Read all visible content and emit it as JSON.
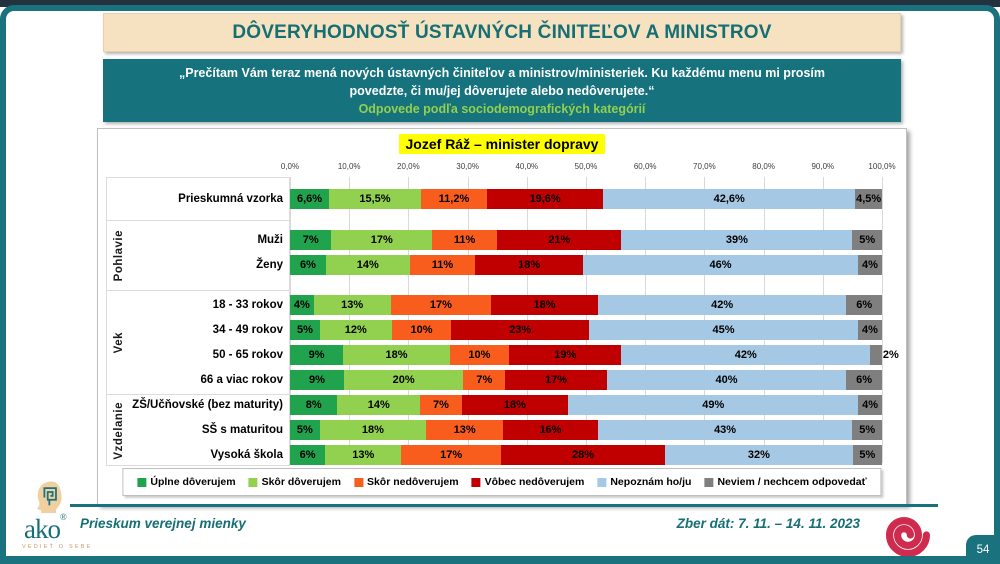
{
  "slide": {
    "title": "DÔVERYHODNOSŤ ÚSTAVNÝCH ČINITEĽOV A MINISTROV",
    "quote": "„Prečítam Vám teraz mená nových ústavných činiteľov a ministrov/ministeriek. Ku každému menu mi prosím povedzte, či mu/jej dôverujete alebo nedôverujete.“",
    "quote_sub": "Odpovede podľa sociodemografických kategórií",
    "page_number": "54"
  },
  "footer": {
    "left_text": "Prieskum verejnej mienky",
    "right_text": "Zber dát: 7. 11. – 14. 11. 2023",
    "logo_word": "ako",
    "logo_registered": "®",
    "logo_tagline": "VEDIEŤ O SEBE"
  },
  "colors": {
    "frame_teal": "#19727D",
    "title_text": "#156F74",
    "title_bg": "#F6E2C0",
    "quote_bg": "#16727C",
    "quote_sub_green": "#92D050",
    "highlight_yellow": "#FFFF00",
    "spiral_red": "#CF2B4E"
  },
  "chart_data": {
    "type": "bar",
    "stacked": true,
    "percent_stacked": true,
    "orientation": "horizontal",
    "title": "Jozef Ráž – minister dopravy",
    "xlim": [
      0,
      100
    ],
    "x_ticks": [
      "0,0%",
      "10,0%",
      "20,0%",
      "30,0%",
      "40,0%",
      "50,0%",
      "60,0%",
      "70,0%",
      "80,0%",
      "90,0%",
      "100,0%"
    ],
    "grid": "vertical",
    "legend_position": "bottom",
    "series_names": [
      "Úplne dôverujem",
      "Skôr dôverujem",
      "Skôr nedôverujem",
      "Vôbec nedôverujem",
      "Nepoznám ho/ju",
      "Neviem / nechcem odpovedať"
    ],
    "series_colors": [
      "#21A24D",
      "#92D050",
      "#F95D1D",
      "#C00000",
      "#A5C8E4",
      "#7F7F7F"
    ],
    "groups": [
      {
        "label": "",
        "rows": [
          {
            "category": "Prieskumná vzorka",
            "values": [
              6.6,
              15.5,
              11.2,
              19.6,
              42.6,
              4.5
            ],
            "labels": [
              "6,6%",
              "15,5%",
              "11,2%",
              "19,6%",
              "42,6%",
              "4,5%"
            ]
          }
        ]
      },
      {
        "label": "Pohlavie",
        "rows": [
          {
            "category": "Muži",
            "values": [
              7,
              17,
              11,
              21,
              39,
              5
            ],
            "labels": [
              "7%",
              "17%",
              "11%",
              "21%",
              "39%",
              "5%"
            ]
          },
          {
            "category": "Ženy",
            "values": [
              6,
              14,
              11,
              18,
              46,
              4
            ],
            "labels": [
              "6%",
              "14%",
              "11%",
              "18%",
              "46%",
              "4%"
            ]
          }
        ]
      },
      {
        "label": "Vek",
        "rows": [
          {
            "category": "18 - 33 rokov",
            "values": [
              4,
              13,
              17,
              18,
              42,
              6
            ],
            "labels": [
              "4%",
              "13%",
              "17%",
              "18%",
              "42%",
              "6%"
            ]
          },
          {
            "category": "34 - 49 rokov",
            "values": [
              5,
              12,
              10,
              23,
              45,
              4
            ],
            "labels": [
              "5%",
              "12%",
              "10%",
              "23%",
              "45%",
              "4%"
            ]
          },
          {
            "category": "50 - 65 rokov",
            "values": [
              9,
              18,
              10,
              19,
              42,
              2
            ],
            "labels": [
              "9%",
              "18%",
              "10%",
              "19%",
              "42%",
              "2%"
            ]
          },
          {
            "category": "66 a viac rokov",
            "values": [
              9,
              20,
              7,
              17,
              40,
              6
            ],
            "labels": [
              "9%",
              "20%",
              "7%",
              "17%",
              "40%",
              "6%"
            ]
          }
        ]
      },
      {
        "label": "Vzdelanie",
        "rows": [
          {
            "category": "ZŠ/Učňovské (bez maturity)",
            "values": [
              8,
              14,
              7,
              18,
              49,
              4
            ],
            "labels": [
              "8%",
              "14%",
              "7%",
              "18%",
              "49%",
              "4%"
            ]
          },
          {
            "category": "SŠ s maturitou",
            "values": [
              5,
              18,
              13,
              16,
              43,
              5
            ],
            "labels": [
              "5%",
              "18%",
              "13%",
              "16%",
              "43%",
              "5%"
            ]
          },
          {
            "category": "Vysoká škola",
            "values": [
              6,
              13,
              17,
              28,
              32,
              5
            ],
            "labels": [
              "6%",
              "13%",
              "17%",
              "28%",
              "32%",
              "5%"
            ]
          }
        ]
      }
    ]
  }
}
